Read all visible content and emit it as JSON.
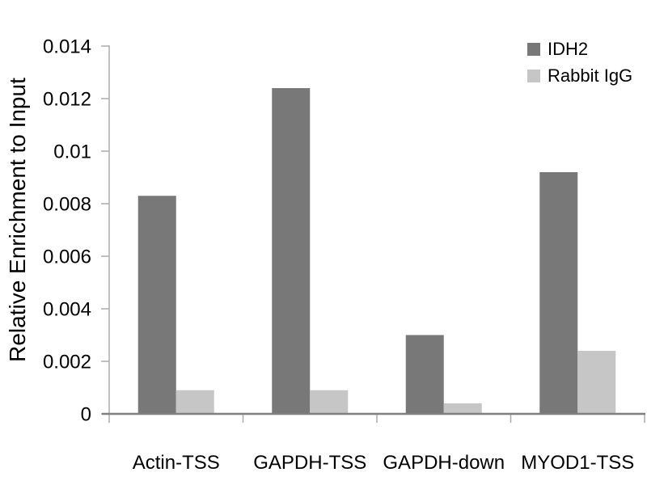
{
  "chart_data": {
    "type": "bar",
    "ylabel": "Relative Enrichment to Input",
    "categories": [
      "Actin-TSS",
      "GAPDH-TSS",
      "GAPDH-down",
      "MYOD1-TSS"
    ],
    "series": [
      {
        "name": "IDH2",
        "color": "#787878",
        "values": [
          0.0083,
          0.0124,
          0.003,
          0.0092
        ]
      },
      {
        "name": "Rabbit IgG",
        "color": "#c6c6c6",
        "values": [
          0.0009,
          0.0009,
          0.0004,
          0.0024
        ]
      }
    ],
    "ylim": [
      0,
      0.014
    ],
    "ytick_step": 0.002,
    "ytick_labels": [
      "0",
      "0.002",
      "0.004",
      "0.006",
      "0.008",
      "0.01",
      "0.012",
      "0.014"
    ],
    "grid": false,
    "legend_position": "top-right",
    "axis_color": "#ababab",
    "baseline_color": "#7f7f7f",
    "text_color": "#000000"
  }
}
